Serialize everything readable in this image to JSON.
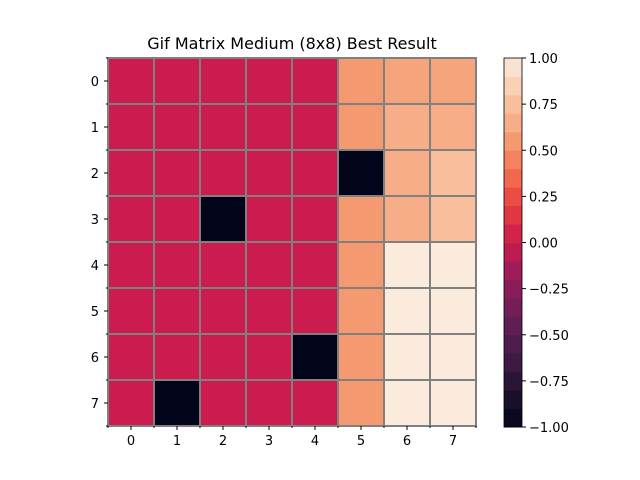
{
  "chart_data": {
    "type": "heatmap",
    "title": "Gif Matrix Medium (8x8) Best Result",
    "xlabel": "",
    "ylabel": "",
    "x_tick_labels": [
      "0",
      "1",
      "2",
      "3",
      "4",
      "5",
      "6",
      "7"
    ],
    "y_tick_labels": [
      "0",
      "1",
      "2",
      "3",
      "4",
      "5",
      "6",
      "7"
    ],
    "grid": true,
    "grid_color": "#808080",
    "matrix": [
      [
        0,
        0,
        0,
        0,
        0,
        0.55,
        0.6,
        0.6
      ],
      [
        0,
        0,
        0,
        0,
        0,
        0.55,
        0.65,
        0.65
      ],
      [
        0,
        0,
        0,
        0,
        0,
        -1,
        0.65,
        0.75
      ],
      [
        0,
        0,
        -1,
        0,
        0,
        0.55,
        0.65,
        0.75
      ],
      [
        0,
        0,
        0,
        0,
        0,
        0.55,
        1.0,
        1.0
      ],
      [
        0,
        0,
        0,
        0,
        0,
        0.55,
        1.0,
        1.0
      ],
      [
        0,
        0,
        0,
        0,
        -1,
        0.55,
        1.0,
        1.0
      ],
      [
        0,
        -1,
        0,
        0,
        0,
        0.55,
        1.0,
        1.0
      ]
    ],
    "colorbar": {
      "vmin": -1.0,
      "vmax": 1.0,
      "tick_values": [
        1.0,
        0.75,
        0.5,
        0.25,
        0.0,
        -0.25,
        -0.5,
        -0.75,
        -1.0
      ],
      "tick_labels": [
        "1.00",
        "0.75",
        "0.50",
        "0.25",
        "0.00",
        "−0.25",
        "−0.50",
        "−0.75",
        "−1.00"
      ],
      "levels": 20
    },
    "colormap": {
      "name": "rocket",
      "stops": [
        [
          0.0,
          "#03051a"
        ],
        [
          0.1,
          "#221331"
        ],
        [
          0.2,
          "#451c47"
        ],
        [
          0.3,
          "#691f55"
        ],
        [
          0.4,
          "#921c5b"
        ],
        [
          0.5,
          "#cb1b4f"
        ],
        [
          0.6,
          "#e83f3f"
        ],
        [
          0.7,
          "#f37651"
        ],
        [
          0.8,
          "#f6a47c"
        ],
        [
          0.9,
          "#f9c8a8"
        ],
        [
          1.0,
          "#faebdd"
        ]
      ]
    }
  }
}
